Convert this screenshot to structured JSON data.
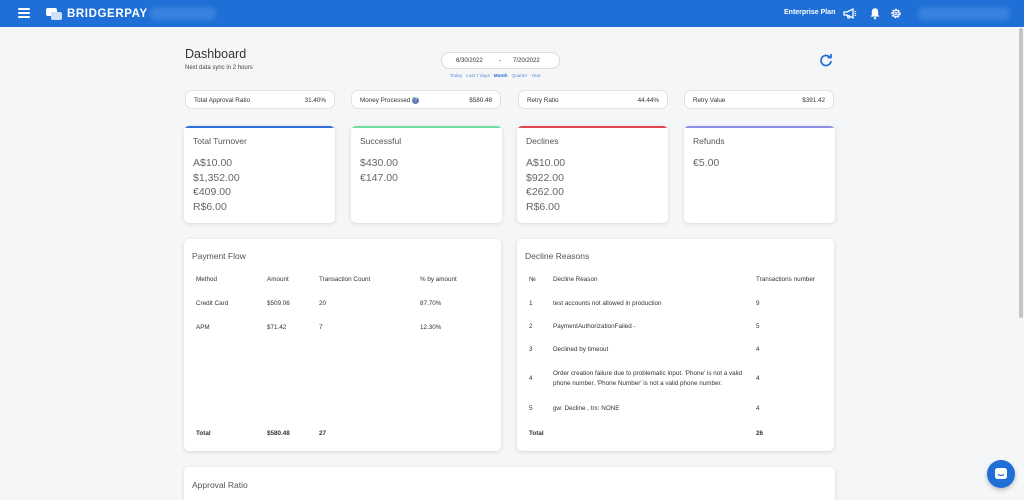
{
  "topbar": {
    "brand": "BRIDGERPAY",
    "plan": "Enterprise Plan"
  },
  "header": {
    "title": "Dashboard",
    "subtitle": "Next data sync in 2 hours",
    "date_start": "6/30/2022",
    "date_separator": "-",
    "date_end": "7/20/2022",
    "presets": [
      "Today",
      "Last 7 days",
      "Month",
      "Quarter",
      "Year"
    ],
    "active_preset": "Month"
  },
  "kpis": [
    {
      "label": "Total Approval Ratio",
      "value": "31.40%"
    },
    {
      "label": "Money Processed",
      "value": "$580.48",
      "info": "?"
    },
    {
      "label": "Retry Ratio",
      "value": "44.44%"
    },
    {
      "label": "Retry Value",
      "value": "$391.42"
    }
  ],
  "cards": [
    {
      "title": "Total Turnover",
      "accent": "#2f6fd6",
      "values": [
        "A$10.00",
        "$1,352.00",
        "€409.00",
        "R$6.00"
      ]
    },
    {
      "title": "Successful",
      "accent": "#6fdca2",
      "values": [
        "$430.00",
        "€147.00"
      ]
    },
    {
      "title": "Declines",
      "accent": "#e0474c",
      "values": [
        "A$10.00",
        "$922.00",
        "€262.00",
        "R$6.00"
      ]
    },
    {
      "title": "Refunds",
      "accent": "#8e8ee6",
      "values": [
        "€5.00"
      ]
    }
  ],
  "payment_flow": {
    "title": "Payment Flow",
    "headers": [
      "Method",
      "Amount",
      "Transaction Count",
      "% by amount"
    ],
    "rows": [
      [
        "Credit Card",
        "$509.06",
        "20",
        "87.70%"
      ],
      [
        "APM",
        "$71.42",
        "7",
        "12.30%"
      ]
    ],
    "total": {
      "label": "Total",
      "amount": "$580.48",
      "count": "27"
    }
  },
  "decline_reasons": {
    "title": "Decline Reasons",
    "headers": [
      "№",
      "Decline Reason",
      "Transactions number"
    ],
    "rows": [
      [
        "1",
        "test accounts not allowed in production",
        "9"
      ],
      [
        "2",
        "PaymentAuthorizationFailed -",
        "5"
      ],
      [
        "3",
        "Declined by timeout",
        "4"
      ],
      [
        "4",
        "Order creation failure due to problematic input. 'Phone' is not a valid phone number. 'Phone Number' is not a valid phone number.",
        "4"
      ],
      [
        "5",
        "gw: Decline , trx: NONE",
        "4"
      ]
    ],
    "total": {
      "label": "Total",
      "count": "26"
    }
  },
  "approval_ratio": {
    "title": "Approval Ratio"
  },
  "colors": {
    "primary": "#1f6fd6",
    "background": "#f5f6f8"
  }
}
